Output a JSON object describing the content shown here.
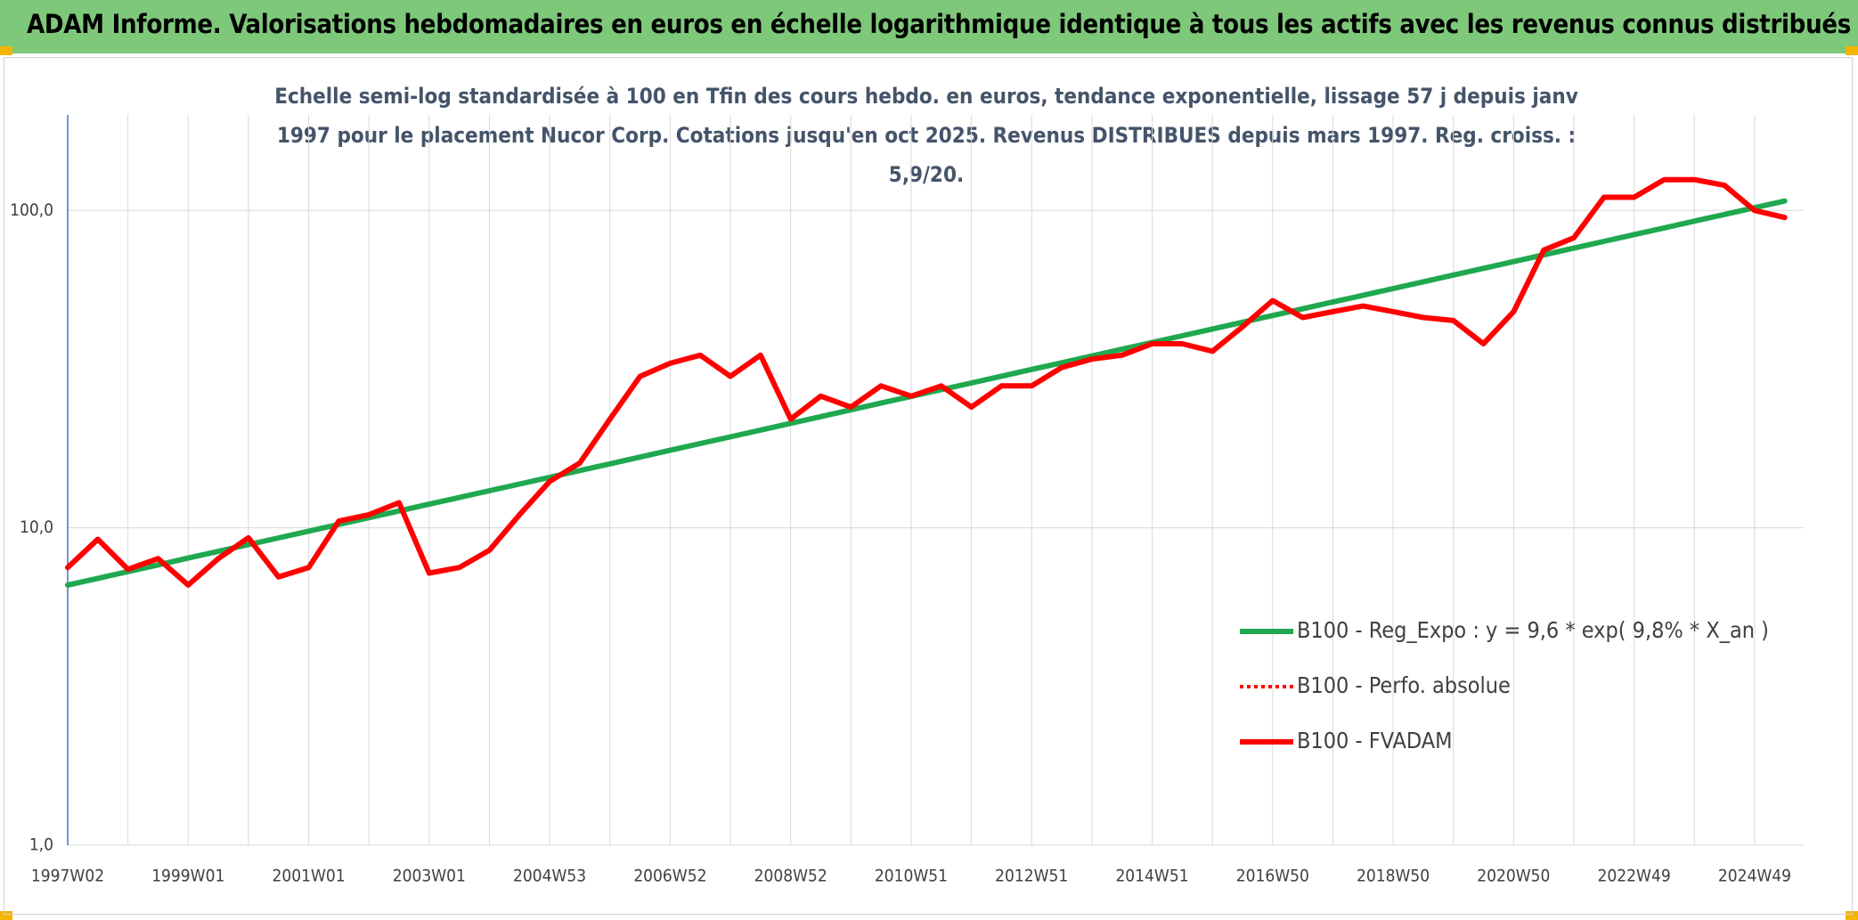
{
  "chart_data": {
    "type": "line",
    "title": "ADAM Informe. Valorisations hebdomadaires en euros en échelle logarithmique identique à tous les actifs avec les revenus connus distribués",
    "subtitle": "Echelle semi-log standardisée à 100 en Tfin des cours hebdo. en euros, tendance exponentielle, lissage 57 j depuis janv 1997 pour le placement Nucor Corp. Cotations jusqu'en oct 2025. Revenus DISTRIBUES depuis mars 1997. Reg. croiss. : 5,9/20.",
    "categories": [
      "1997W02",
      null,
      null,
      null,
      "1999W01",
      null,
      null,
      null,
      "2001W01",
      null,
      null,
      null,
      "2003W01",
      null,
      null,
      null,
      "2004W53",
      null,
      null,
      null,
      "2006W52",
      null,
      null,
      null,
      "2008W52",
      null,
      null,
      null,
      "2010W51",
      null,
      null,
      null,
      "2012W51",
      null,
      null,
      null,
      "2014W51",
      null,
      null,
      null,
      "2016W50",
      null,
      null,
      null,
      "2018W50",
      null,
      null,
      null,
      "2020W50",
      null,
      null,
      null,
      "2022W49",
      null,
      null,
      null,
      "2024W49",
      null
    ],
    "ylim": [
      1,
      200
    ],
    "log_scale": true,
    "yticks": [
      {
        "value": 1,
        "label": "1,0"
      },
      {
        "value": 10,
        "label": "10,0"
      },
      {
        "value": 100,
        "label": "100,0"
      }
    ],
    "grid": true,
    "legend": "right",
    "series": [
      {
        "name": "B100 - Reg_Expo : y = 9,6 * exp( 9,8% *  X_an )",
        "color": "#1fa84f",
        "line_style": "solid",
        "values": [
          6.6,
          6.93,
          7.28,
          7.64,
          8.03,
          8.43,
          8.85,
          9.29,
          9.76,
          10.25,
          10.76,
          11.3,
          11.87,
          12.46,
          13.09,
          13.74,
          14.43,
          15.15,
          15.91,
          16.71,
          17.55,
          18.43,
          19.35,
          20.32,
          21.34,
          22.41,
          23.53,
          24.71,
          25.95,
          27.25,
          28.61,
          30.05,
          31.55,
          33.13,
          34.79,
          36.54,
          38.37,
          40.29,
          42.31,
          44.43,
          46.66,
          49.0,
          51.45,
          54.03,
          56.74,
          59.58,
          62.57,
          65.7,
          68.99,
          72.45,
          76.08,
          79.89,
          83.9,
          88.1,
          92.51,
          97.15,
          102.0,
          107.1
        ]
      },
      {
        "name": "B100 - Perfo. absolue",
        "color": "#ff0000",
        "line_style": "dotted",
        "values": [
          7.5,
          9.2,
          7.4,
          8.0,
          6.6,
          8.0,
          9.3,
          7.0,
          7.5,
          10.5,
          11.0,
          12.0,
          7.2,
          7.5,
          8.5,
          11,
          14,
          16,
          22,
          30,
          33,
          35,
          30,
          35,
          22,
          26,
          24,
          28,
          26,
          28,
          24,
          28,
          28,
          32,
          34,
          35,
          38,
          38,
          36,
          43,
          52,
          46,
          48,
          50,
          48,
          46,
          45,
          38,
          48,
          75,
          82,
          110,
          110,
          125,
          125,
          120,
          100,
          95
        ]
      },
      {
        "name": "B100 - FVADAM",
        "color": "#ff0000",
        "line_style": "solid",
        "values": [
          7.5,
          9.2,
          7.4,
          8.0,
          6.6,
          8.0,
          9.3,
          7.0,
          7.5,
          10.5,
          11.0,
          12.0,
          7.2,
          7.5,
          8.5,
          11,
          14,
          16,
          22,
          30,
          33,
          35,
          30,
          35,
          22,
          26,
          24,
          28,
          26,
          28,
          24,
          28,
          28,
          32,
          34,
          35,
          38,
          38,
          36,
          43,
          52,
          46,
          48,
          50,
          48,
          46,
          45,
          38,
          48,
          75,
          82,
          110,
          110,
          125,
          125,
          120,
          100,
          95
        ]
      }
    ]
  }
}
